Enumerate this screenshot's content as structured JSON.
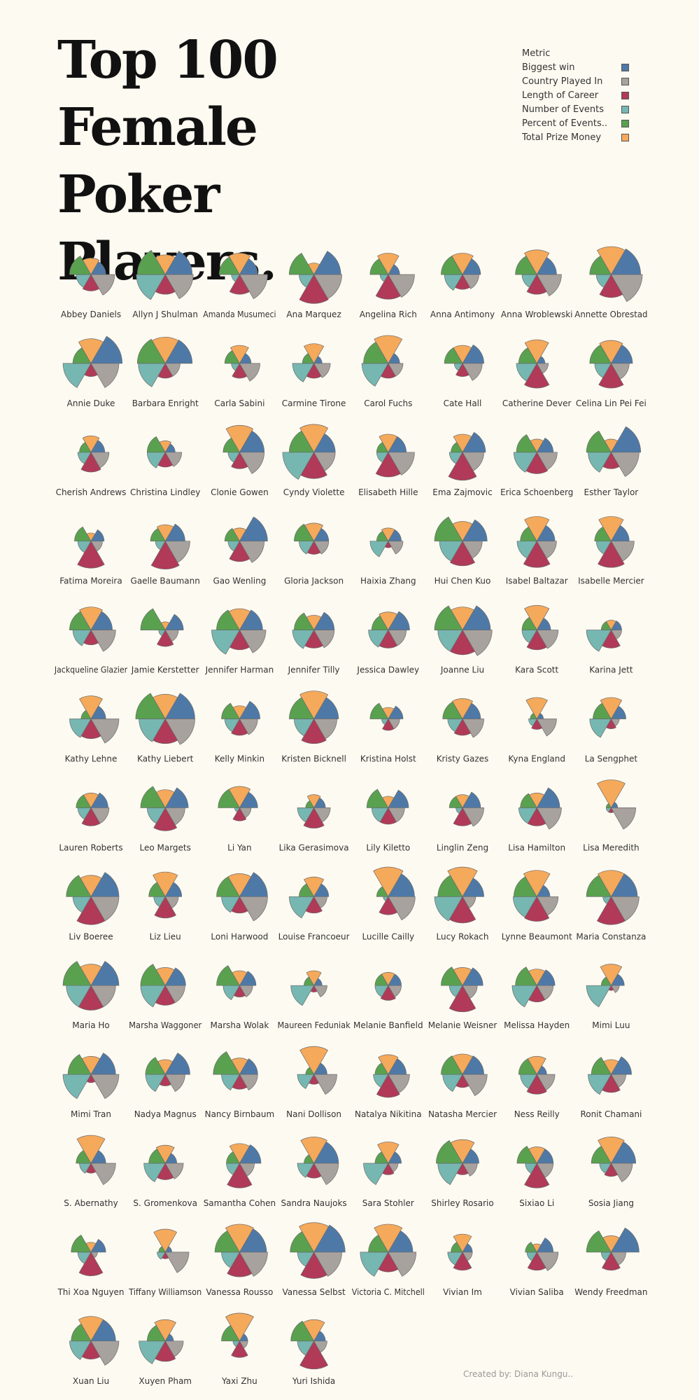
{
  "title": "Top 100 Female Poker Players.",
  "legend": {
    "title": "Metric",
    "items": [
      {
        "label": "Biggest win",
        "color": "#4e79a7"
      },
      {
        "label": "Country Played In",
        "color": "#a8a29e"
      },
      {
        "label": "Length of Career",
        "color": "#b03a58"
      },
      {
        "label": "Number of Events",
        "color": "#76b7b2"
      },
      {
        "label": "Percent of Events..",
        "color": "#59a14f"
      },
      {
        "label": "Total Prize Money",
        "color": "#f5a95b"
      }
    ]
  },
  "credit": "Created by: Diana Kungu..",
  "chart_data": {
    "type": "pie",
    "subtype": "polar-area small multiples",
    "metrics": [
      "Biggest win",
      "Country Played In",
      "Length of Career",
      "Number of Events",
      "Percent of Events..",
      "Total Prize Money"
    ],
    "metric_order": [
      "Total Prize Money",
      "Biggest win",
      "Country Played In",
      "Length of Career",
      "Number of Events",
      "Percent of Events.."
    ],
    "value_note": "relative radius 0-1 estimated from the picture",
    "players": [
      {
        "name": "Abbey Daniels",
        "values": [
          0.45,
          0.72,
          0.5,
          0.45,
          0.65,
          0.5
        ]
      },
      {
        "name": "Allyn J Shulman",
        "values": [
          0.82,
          0.85,
          0.6,
          0.88,
          0.85,
          0.6
        ]
      },
      {
        "name": "Amanda Musumeci",
        "values": [
          0.55,
          0.85,
          0.6,
          0.25,
          0.62,
          0.65
        ]
      },
      {
        "name": "Ana Marquez",
        "values": [
          0.82,
          0.85,
          0.88,
          0.45,
          0.75,
          0.35
        ]
      },
      {
        "name": "Angelina Rich",
        "values": [
          0.35,
          0.8,
          0.75,
          0.25,
          0.55,
          0.65
        ]
      },
      {
        "name": "Anna Antimony",
        "values": [
          0.55,
          0.5,
          0.45,
          0.55,
          0.65,
          0.65
        ]
      },
      {
        "name": "Anna Wroblewski",
        "values": [
          0.6,
          0.75,
          0.6,
          0.45,
          0.65,
          0.75
        ]
      },
      {
        "name": "Annette Obrestad",
        "values": [
          0.9,
          0.95,
          0.7,
          0.45,
          0.65,
          0.85
        ]
      },
      {
        "name": "Annie Duke",
        "values": [
          0.95,
          0.85,
          0.4,
          0.85,
          0.55,
          0.75
        ]
      },
      {
        "name": "Barbara Enright",
        "values": [
          0.82,
          0.45,
          0.45,
          0.82,
          0.85,
          0.8
        ]
      },
      {
        "name": "Carla Sabini",
        "values": [
          0.35,
          0.62,
          0.45,
          0.25,
          0.45,
          0.55
        ]
      },
      {
        "name": "Carmine Tirone",
        "values": [
          0.25,
          0.5,
          0.45,
          0.65,
          0.35,
          0.6
        ]
      },
      {
        "name": "Carol Fuchs",
        "values": [
          0.35,
          0.45,
          0.45,
          0.8,
          0.75,
          0.85
        ]
      },
      {
        "name": "Cate Hall",
        "values": [
          0.65,
          0.6,
          0.4,
          0.25,
          0.55,
          0.55
        ]
      },
      {
        "name": "Catherine Dever",
        "values": [
          0.25,
          0.35,
          0.75,
          0.62,
          0.55,
          0.72
        ]
      },
      {
        "name": "Celina Lin Pei Fei",
        "values": [
          0.65,
          0.55,
          0.75,
          0.5,
          0.65,
          0.7
        ]
      },
      {
        "name": "Cherish Andrews",
        "values": [
          0.42,
          0.55,
          0.6,
          0.4,
          0.35,
          0.5
        ]
      },
      {
        "name": "Christina Lindley",
        "values": [
          0.3,
          0.5,
          0.45,
          0.55,
          0.55,
          0.35
        ]
      },
      {
        "name": "Clonie Gowen",
        "values": [
          0.75,
          0.75,
          0.5,
          0.35,
          0.5,
          0.82
        ]
      },
      {
        "name": "Cyndy Violette",
        "values": [
          0.65,
          0.65,
          0.8,
          0.95,
          0.75,
          0.85
        ]
      },
      {
        "name": "Elisabeth Hille",
        "values": [
          0.55,
          0.8,
          0.75,
          0.35,
          0.35,
          0.55
        ]
      },
      {
        "name": "Ema Zajmovic",
        "values": [
          0.7,
          0.65,
          0.85,
          0.4,
          0.35,
          0.55
        ]
      },
      {
        "name": "Erica Schoenberg",
        "values": [
          0.5,
          0.62,
          0.65,
          0.7,
          0.62,
          0.4
        ]
      },
      {
        "name": "Esther Taylor",
        "values": [
          0.9,
          0.85,
          0.5,
          0.7,
          0.75,
          0.4
        ]
      },
      {
        "name": "Fatima Moreira",
        "values": [
          0.4,
          0.35,
          0.82,
          0.4,
          0.5,
          0.25
        ]
      },
      {
        "name": "Gaelle Baumann",
        "values": [
          0.6,
          0.75,
          0.85,
          0.3,
          0.45,
          0.5
        ]
      },
      {
        "name": "Gao Wenling",
        "values": [
          0.85,
          0.75,
          0.62,
          0.35,
          0.45,
          0.4
        ]
      },
      {
        "name": "Gloria Jackson",
        "values": [
          0.45,
          0.45,
          0.4,
          0.45,
          0.6,
          0.55
        ]
      },
      {
        "name": "Haixia Zhang",
        "values": [
          0.4,
          0.45,
          0.2,
          0.55,
          0.35,
          0.4
        ]
      },
      {
        "name": "Hui Chen Kuo",
        "values": [
          0.75,
          0.6,
          0.75,
          0.7,
          0.85,
          0.6
        ]
      },
      {
        "name": "Isabel Baltazar",
        "values": [
          0.55,
          0.6,
          0.8,
          0.6,
          0.5,
          0.75
        ]
      },
      {
        "name": "Isabelle Mercier",
        "values": [
          0.55,
          0.7,
          0.8,
          0.45,
          0.5,
          0.75
        ]
      },
      {
        "name": "Jackqueline Glazier",
        "values": [
          0.65,
          0.75,
          0.45,
          0.55,
          0.65,
          0.7
        ]
      },
      {
        "name": "Jamie Kerstetter",
        "values": [
          0.55,
          0.4,
          0.5,
          0.2,
          0.75,
          0.25
        ]
      },
      {
        "name": "Jennifer Harman",
        "values": [
          0.7,
          0.8,
          0.6,
          0.85,
          0.7,
          0.65
        ]
      },
      {
        "name": "Jennifer Tilly",
        "values": [
          0.62,
          0.62,
          0.55,
          0.65,
          0.6,
          0.45
        ]
      },
      {
        "name": "Jessica Dawley",
        "values": [
          0.65,
          0.55,
          0.55,
          0.6,
          0.5,
          0.55
        ]
      },
      {
        "name": "Joanne Liu",
        "values": [
          0.85,
          0.9,
          0.75,
          0.75,
          0.85,
          0.7
        ]
      },
      {
        "name": "Kara Scott",
        "values": [
          0.42,
          0.65,
          0.6,
          0.45,
          0.45,
          0.75
        ]
      },
      {
        "name": "Karina Jett",
        "values": [
          0.32,
          0.32,
          0.55,
          0.75,
          0.3,
          0.3
        ]
      },
      {
        "name": "Kathy Lehne",
        "values": [
          0.45,
          0.85,
          0.6,
          0.65,
          0.3,
          0.7
        ]
      },
      {
        "name": "Kathy Liebert",
        "values": [
          0.9,
          0.9,
          0.75,
          0.8,
          0.9,
          0.75
        ]
      },
      {
        "name": "Kelly Minkin",
        "values": [
          0.62,
          0.55,
          0.5,
          0.45,
          0.55,
          0.4
        ]
      },
      {
        "name": "Kristen Bicknell",
        "values": [
          0.75,
          0.7,
          0.75,
          0.6,
          0.75,
          0.85
        ]
      },
      {
        "name": "Kristina Holst",
        "values": [
          0.45,
          0.35,
          0.35,
          0.2,
          0.55,
          0.35
        ]
      },
      {
        "name": "Kristy Gazes",
        "values": [
          0.55,
          0.65,
          0.5,
          0.45,
          0.6,
          0.62
        ]
      },
      {
        "name": "Kyna England",
        "values": [
          0.2,
          0.6,
          0.32,
          0.25,
          0.2,
          0.65
        ]
      },
      {
        "name": "La Sengphet",
        "values": [
          0.45,
          0.25,
          0.3,
          0.65,
          0.55,
          0.65
        ]
      },
      {
        "name": "Lauren Roberts",
        "values": [
          0.52,
          0.55,
          0.55,
          0.4,
          0.45,
          0.45
        ]
      },
      {
        "name": "Leo Margets",
        "values": [
          0.7,
          0.6,
          0.7,
          0.55,
          0.75,
          0.55
        ]
      },
      {
        "name": "Li Yan",
        "values": [
          0.55,
          0.35,
          0.4,
          0.15,
          0.65,
          0.65
        ]
      },
      {
        "name": "Lika Gerasimova",
        "values": [
          0.35,
          0.5,
          0.62,
          0.5,
          0.25,
          0.4
        ]
      },
      {
        "name": "Lily Kiletto",
        "values": [
          0.62,
          0.5,
          0.5,
          0.5,
          0.65,
          0.35
        ]
      },
      {
        "name": "Linglin Zeng",
        "values": [
          0.55,
          0.65,
          0.55,
          0.2,
          0.4,
          0.4
        ]
      },
      {
        "name": "Lisa Hamilton",
        "values": [
          0.7,
          0.75,
          0.55,
          0.55,
          0.5,
          0.45
        ]
      },
      {
        "name": "Lisa Meredith",
        "values": [
          0.2,
          0.75,
          0.15,
          0.15,
          0.15,
          0.85
        ]
      },
      {
        "name": "Liv Boeree",
        "values": [
          0.85,
          0.85,
          0.85,
          0.55,
          0.75,
          0.65
        ]
      },
      {
        "name": "Liz Lieu",
        "values": [
          0.5,
          0.4,
          0.65,
          0.35,
          0.5,
          0.75
        ]
      },
      {
        "name": "Loni Harwood",
        "values": [
          0.85,
          0.85,
          0.5,
          0.55,
          0.7,
          0.7
        ]
      },
      {
        "name": "Louise Francoeur",
        "values": [
          0.45,
          0.4,
          0.5,
          0.75,
          0.45,
          0.6
        ]
      },
      {
        "name": "Lucille Cailly",
        "values": [
          0.8,
          0.82,
          0.55,
          0.15,
          0.35,
          0.9
        ]
      },
      {
        "name": "Lucy Rokach",
        "values": [
          0.65,
          0.4,
          0.8,
          0.85,
          0.75,
          0.9
        ]
      },
      {
        "name": "Lynne Beaumont",
        "values": [
          0.4,
          0.65,
          0.75,
          0.72,
          0.7,
          0.8
        ]
      },
      {
        "name": "Maria Constanza",
        "values": [
          0.8,
          0.85,
          0.85,
          0.25,
          0.75,
          0.8
        ]
      },
      {
        "name": "Maria Ho",
        "values": [
          0.85,
          0.75,
          0.75,
          0.75,
          0.85,
          0.65
        ]
      },
      {
        "name": "Marsha Waggoner",
        "values": [
          0.62,
          0.6,
          0.6,
          0.75,
          0.75,
          0.55
        ]
      },
      {
        "name": "Marsha Wolak",
        "values": [
          0.5,
          0.4,
          0.35,
          0.5,
          0.7,
          0.45
        ]
      },
      {
        "name": "Maureen Feduniak",
        "values": [
          0.25,
          0.4,
          0.2,
          0.7,
          0.3,
          0.45
        ]
      },
      {
        "name": "Melanie Banfield",
        "values": [
          0.4,
          0.4,
          0.45,
          0.4,
          0.4,
          0.4
        ]
      },
      {
        "name": "Melanie Weisner",
        "values": [
          0.62,
          0.45,
          0.8,
          0.4,
          0.65,
          0.55
        ]
      },
      {
        "name": "Melissa Hayden",
        "values": [
          0.55,
          0.5,
          0.5,
          0.75,
          0.65,
          0.5
        ]
      },
      {
        "name": "Mimi Luu",
        "values": [
          0.4,
          0.25,
          0.15,
          0.75,
          0.3,
          0.65
        ]
      },
      {
        "name": "Mimi Tran",
        "values": [
          0.75,
          0.85,
          0.25,
          0.85,
          0.7,
          0.55
        ]
      },
      {
        "name": "Nadya Magnus",
        "values": [
          0.75,
          0.6,
          0.35,
          0.6,
          0.6,
          0.45
        ]
      },
      {
        "name": "Nancy Birnbaum",
        "values": [
          0.55,
          0.55,
          0.45,
          0.55,
          0.8,
          0.5
        ]
      },
      {
        "name": "Nani Dollison",
        "values": [
          0.4,
          0.7,
          0.3,
          0.5,
          0.25,
          0.85
        ]
      },
      {
        "name": "Natalya Nikitina",
        "values": [
          0.55,
          0.65,
          0.7,
          0.45,
          0.4,
          0.6
        ]
      },
      {
        "name": "Natasha Mercier",
        "values": [
          0.65,
          0.75,
          0.4,
          0.6,
          0.65,
          0.62
        ]
      },
      {
        "name": "Ness Reilly",
        "values": [
          0.3,
          0.55,
          0.6,
          0.5,
          0.55,
          0.55
        ]
      },
      {
        "name": "Ronit Chamani",
        "values": [
          0.62,
          0.45,
          0.55,
          0.7,
          0.6,
          0.45
        ]
      },
      {
        "name": "S. Abernathy",
        "values": [
          0.45,
          0.75,
          0.3,
          0.35,
          0.45,
          0.85
        ]
      },
      {
        "name": "S. Gromenkova",
        "values": [
          0.35,
          0.55,
          0.5,
          0.65,
          0.5,
          0.55
        ]
      },
      {
        "name": "Samantha Cohen",
        "values": [
          0.65,
          0.45,
          0.75,
          0.4,
          0.4,
          0.6
        ]
      },
      {
        "name": "Sandra Naujoks",
        "values": [
          0.75,
          0.75,
          0.45,
          0.5,
          0.3,
          0.8
        ]
      },
      {
        "name": "Sara Stohler",
        "values": [
          0.4,
          0.3,
          0.35,
          0.75,
          0.4,
          0.65
        ]
      },
      {
        "name": "Shirley Rosario",
        "values": [
          0.5,
          0.45,
          0.35,
          0.75,
          0.8,
          0.72
        ]
      },
      {
        "name": "Sixiao Li",
        "values": [
          0.5,
          0.5,
          0.75,
          0.35,
          0.6,
          0.5
        ]
      },
      {
        "name": "Sosia Jiang",
        "values": [
          0.75,
          0.65,
          0.4,
          0.35,
          0.6,
          0.8
        ]
      },
      {
        "name": "Thi Xoa Nguyen",
        "values": [
          0.45,
          0.2,
          0.72,
          0.4,
          0.6,
          0.3
        ]
      },
      {
        "name": "Tiffany Williamson",
        "values": [
          0.2,
          0.72,
          0.2,
          0.25,
          0.2,
          0.7
        ]
      },
      {
        "name": "Vanessa Rousso",
        "values": [
          0.82,
          0.85,
          0.75,
          0.55,
          0.75,
          0.85
        ]
      },
      {
        "name": "Vanessa Selbst",
        "values": [
          0.95,
          0.85,
          0.8,
          0.5,
          0.72,
          0.9
        ]
      },
      {
        "name": "Victoria C. Mitchell",
        "values": [
          0.75,
          0.85,
          0.6,
          0.85,
          0.6,
          0.85
        ]
      },
      {
        "name": "Vivian Im",
        "values": [
          0.3,
          0.3,
          0.55,
          0.45,
          0.35,
          0.55
        ]
      },
      {
        "name": "Vivian Saliba",
        "values": [
          0.5,
          0.65,
          0.55,
          0.3,
          0.35,
          0.25
        ]
      },
      {
        "name": "Wendy Freedman",
        "values": [
          0.85,
          0.45,
          0.55,
          0.3,
          0.75,
          0.5
        ]
      },
      {
        "name": "Xuan Liu",
        "values": [
          0.75,
          0.85,
          0.55,
          0.65,
          0.6,
          0.75
        ]
      },
      {
        "name": "Xuyen Pham",
        "values": [
          0.25,
          0.55,
          0.62,
          0.8,
          0.55,
          0.65
        ]
      },
      {
        "name": "Yaxi Zhu",
        "values": [
          0.25,
          0.25,
          0.5,
          0.2,
          0.55,
          0.85
        ]
      },
      {
        "name": "Yuri Ishida",
        "values": [
          0.35,
          0.4,
          0.85,
          0.5,
          0.7,
          0.65
        ]
      }
    ]
  }
}
